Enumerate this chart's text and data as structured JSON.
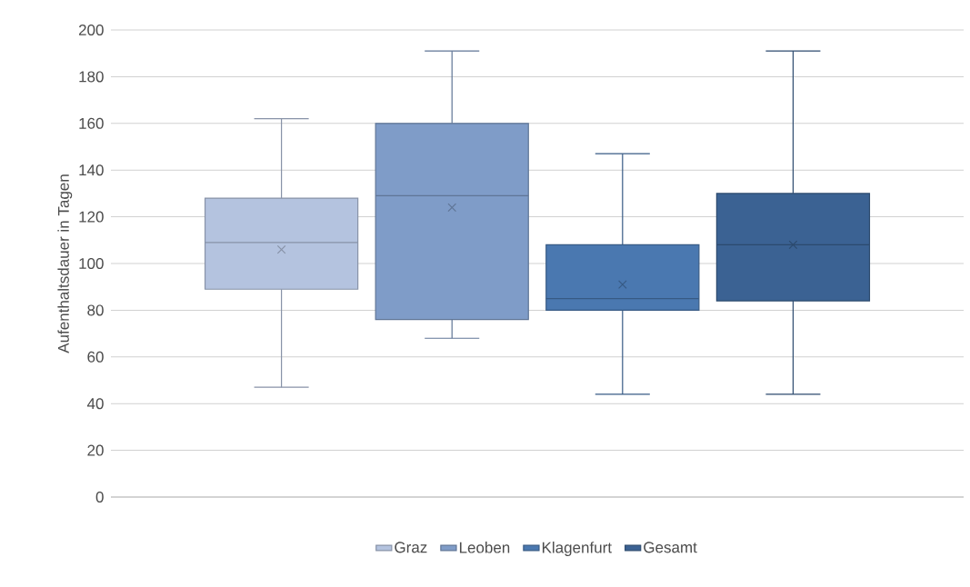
{
  "chart_data": {
    "type": "box",
    "ylabel": "Aufenthaltsdauer in Tagen",
    "categories": [
      null
    ],
    "series": [
      {
        "name": "Graz",
        "color": "#b4c3df",
        "boxes": [
          {
            "low": 47,
            "q1": 89,
            "median": 109,
            "q3": 128,
            "high": 162,
            "mean": 106
          }
        ]
      },
      {
        "name": "Leoben",
        "color": "#7f9cc8",
        "boxes": [
          {
            "low": 68,
            "q1": 76,
            "median": 129,
            "q3": 160,
            "high": 191,
            "mean": 124
          }
        ]
      },
      {
        "name": "Klagenfurt",
        "color": "#4a78b0",
        "boxes": [
          {
            "low": 44,
            "q1": 80,
            "median": 85,
            "q3": 108,
            "high": 147,
            "mean": 91
          }
        ]
      },
      {
        "name": "Gesamt",
        "color": "#3b6293",
        "boxes": [
          {
            "low": 44,
            "q1": 84,
            "median": 108,
            "q3": 130,
            "high": 191,
            "mean": 108
          }
        ]
      }
    ],
    "ylim": [
      0,
      200
    ],
    "yticks": [
      0,
      20,
      40,
      60,
      80,
      100,
      120,
      140,
      160,
      180,
      200
    ],
    "grid": "y",
    "legend": "bottom",
    "tick_labels": "y"
  }
}
